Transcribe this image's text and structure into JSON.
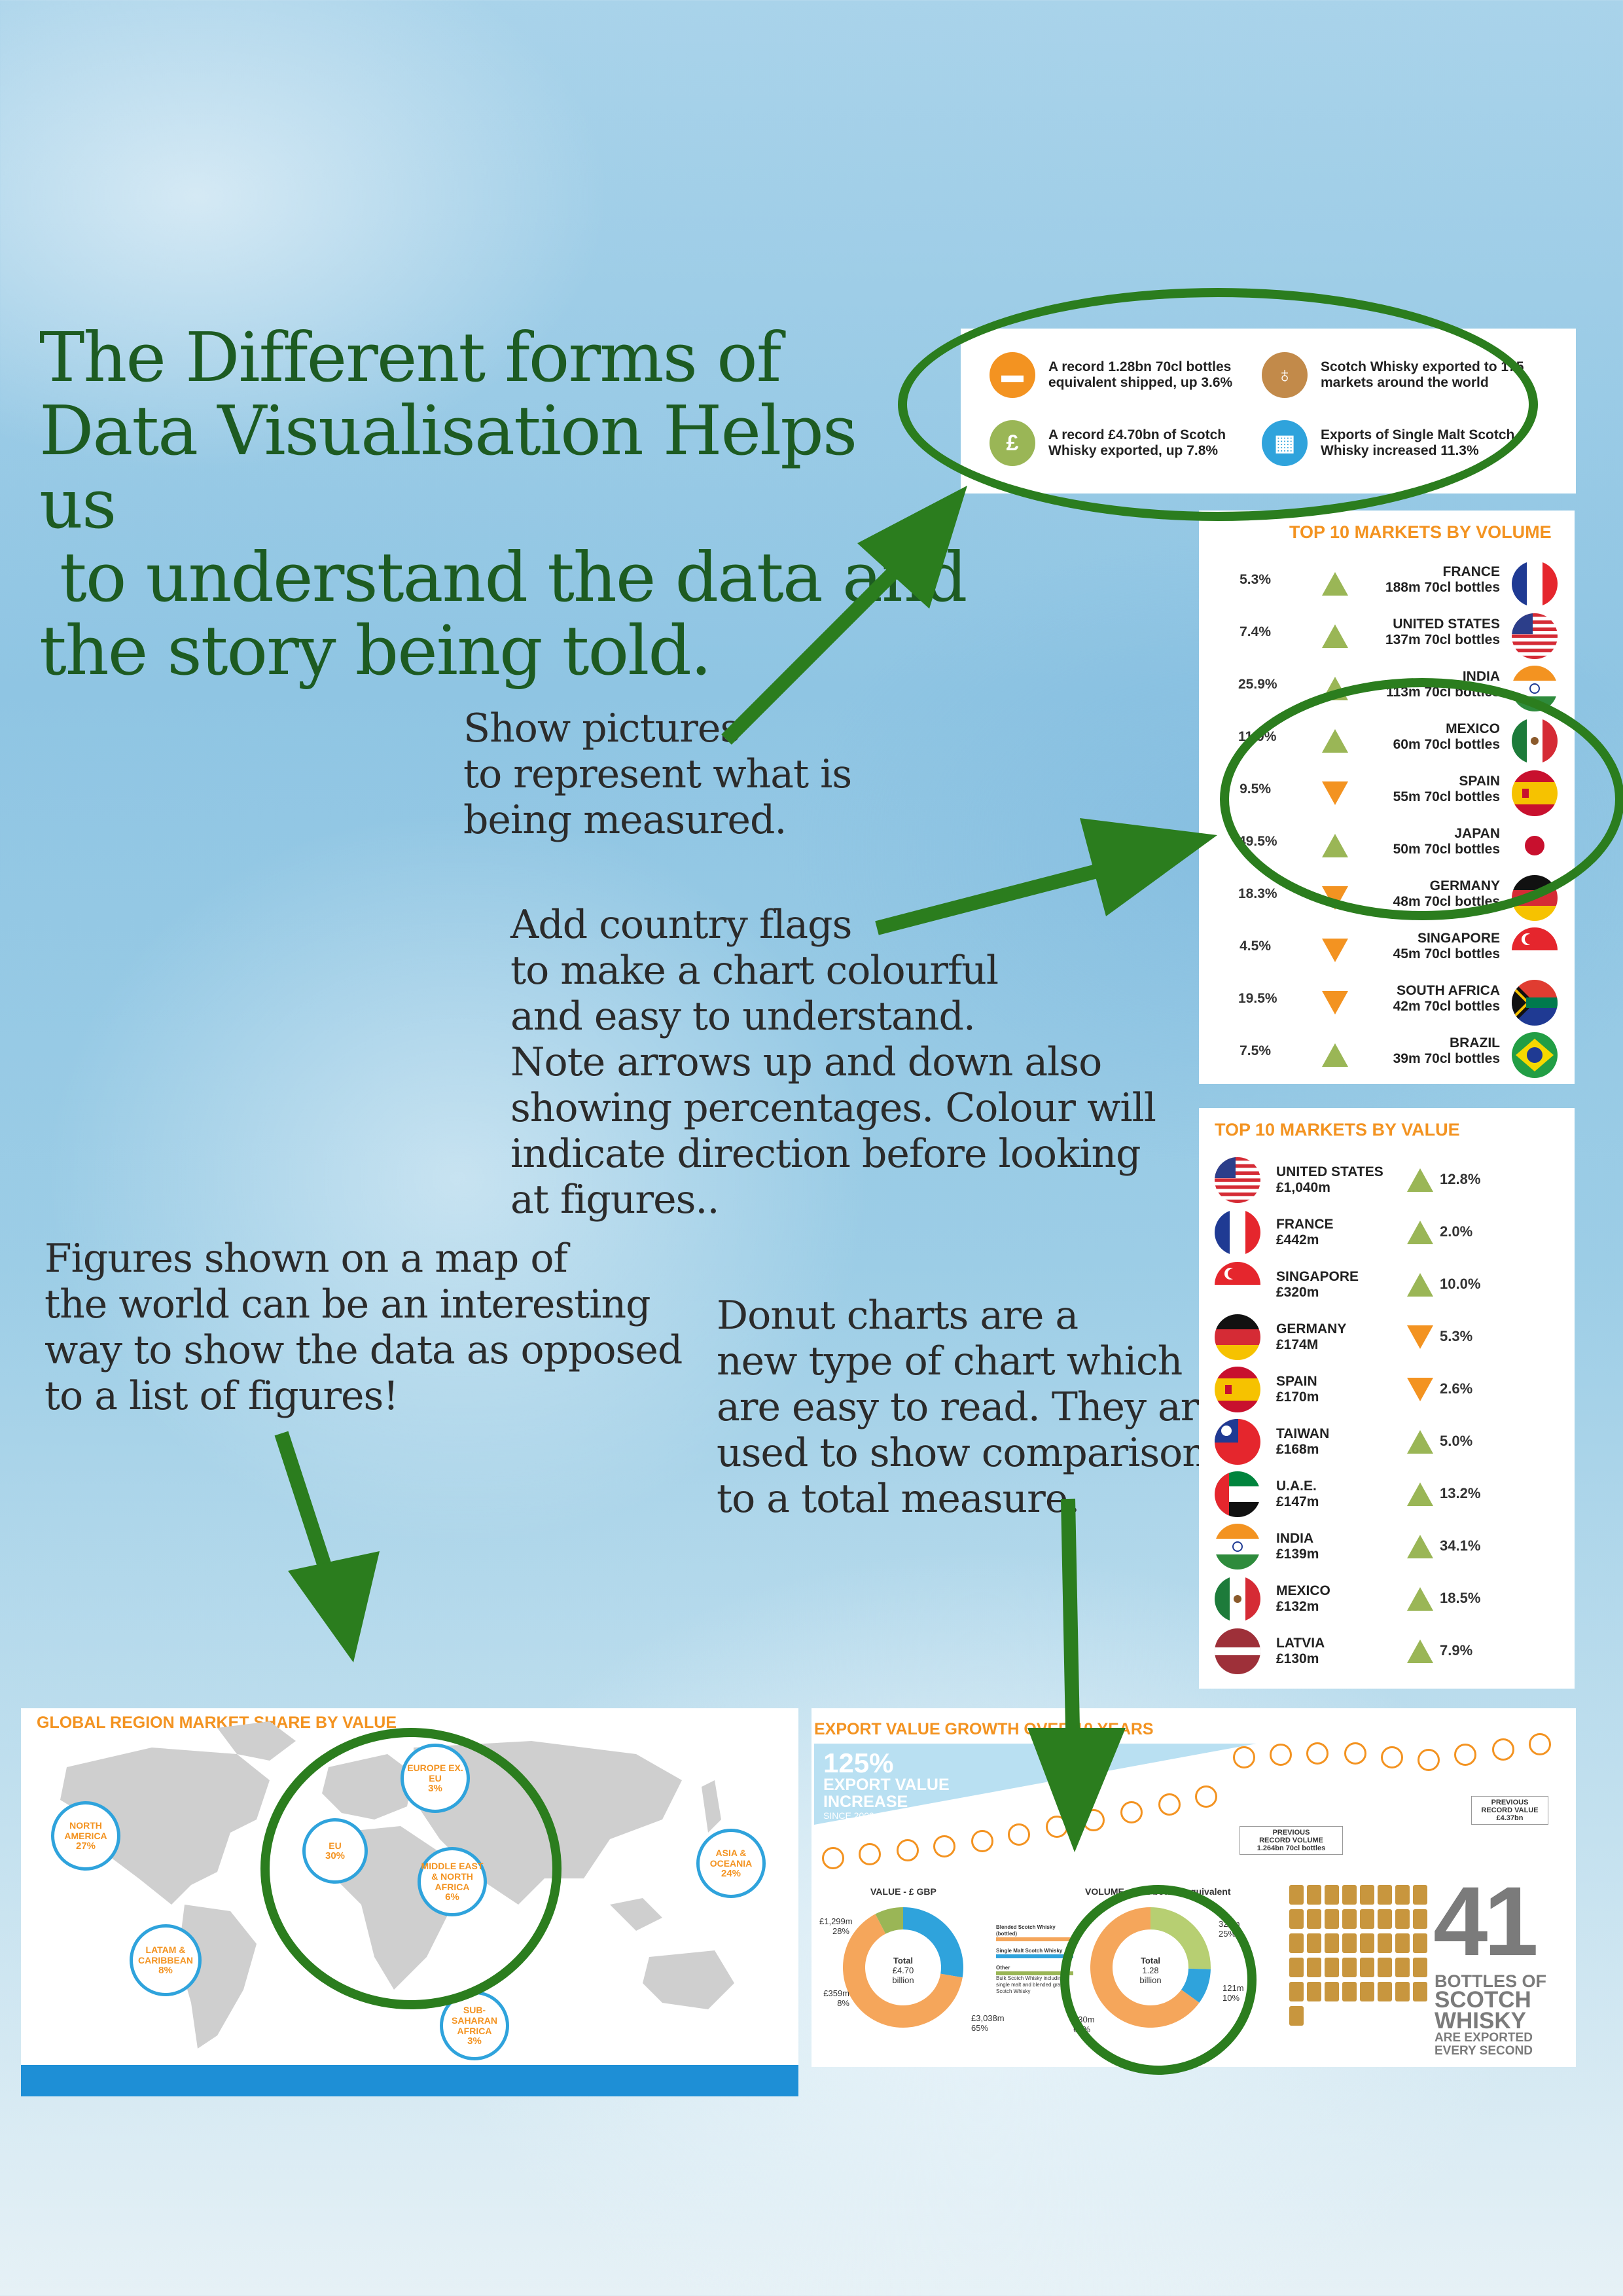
{
  "headline": [
    "The Different forms of",
    "Data Visualisation Helps us",
    " to understand the data and",
    "the story being told."
  ],
  "notes": {
    "pictures": [
      "Show pictures",
      "to represent what is",
      "being measured."
    ],
    "flags": [
      "Add country flags",
      "to make a chart colourful",
      "and easy to understand.",
      "Note arrows up and down also",
      "showing percentages. Colour will",
      "indicate direction before looking",
      "at figures.."
    ],
    "map": [
      "Figures shown on a map of",
      "the world can be an interesting",
      "way to show the data as opposed",
      "to a list of figures!"
    ],
    "donut": [
      "Donut charts are a",
      "new type of chart which",
      "are easy to read. They are",
      "used to show comparisons",
      "to a total measure."
    ]
  },
  "summary": {
    "items": [
      {
        "text": "A record 1.28bn 70cl bottles equivalent shipped, up 3.6%",
        "icon": "bottles-shipped-icon",
        "color": "#f39321",
        "glyph": "▬"
      },
      {
        "text": "Scotch Whisky exported to 175 markets around the world",
        "icon": "whisky-glass-icon",
        "color": "#c28a4a",
        "glyph": "♁"
      },
      {
        "text": "A record £4.70bn of Scotch Whisky exported, up 7.8%",
        "icon": "money-bag-icon",
        "color": "#9ab656",
        "glyph": "£"
      },
      {
        "text": "Exports of Single Malt Scotch Whisky increased 11.3%",
        "icon": "barrels-icon",
        "color": "#2fa3dc",
        "glyph": "▦"
      }
    ]
  },
  "volume": {
    "title": "TOP 10 MARKETS BY VOLUME",
    "rows": [
      {
        "pct": "5.3%",
        "dir": "up",
        "country": "FRANCE",
        "amount": "188m 70cl bottles",
        "flag": "france-flag-icon"
      },
      {
        "pct": "7.4%",
        "dir": "up",
        "country": "UNITED STATES",
        "amount": "137m 70cl bottles",
        "flag": "usa-flag-icon"
      },
      {
        "pct": "25.9%",
        "dir": "up",
        "country": "INDIA",
        "amount": "113m 70cl bottles",
        "flag": "india-flag-icon"
      },
      {
        "pct": "11.9%",
        "dir": "up",
        "country": "MEXICO",
        "amount": "60m 70cl bottles",
        "flag": "mexico-flag-icon"
      },
      {
        "pct": "9.5%",
        "dir": "down",
        "country": "SPAIN",
        "amount": "55m 70cl bottles",
        "flag": "spain-flag-icon"
      },
      {
        "pct": "49.5%",
        "dir": "up",
        "country": "JAPAN",
        "amount": "50m 70cl bottles",
        "flag": "japan-flag-icon"
      },
      {
        "pct": "18.3%",
        "dir": "down",
        "country": "GERMANY",
        "amount": "48m 70cl bottles",
        "flag": "germany-flag-icon"
      },
      {
        "pct": "4.5%",
        "dir": "down",
        "country": "SINGAPORE",
        "amount": "45m 70cl bottles",
        "flag": "singapore-flag-icon"
      },
      {
        "pct": "19.5%",
        "dir": "down",
        "country": "SOUTH AFRICA",
        "amount": "42m 70cl bottles",
        "flag": "south-africa-flag-icon"
      },
      {
        "pct": "7.5%",
        "dir": "up",
        "country": "BRAZIL",
        "amount": "39m 70cl bottles",
        "flag": "brazil-flag-icon"
      }
    ]
  },
  "value": {
    "title": "TOP 10 MARKETS BY VALUE",
    "rows": [
      {
        "country": "UNITED STATES",
        "amount": "£1,040m",
        "pct": "12.8%",
        "dir": "up",
        "flag": "usa-flag-icon"
      },
      {
        "country": "FRANCE",
        "amount": "£442m",
        "pct": "2.0%",
        "dir": "up",
        "flag": "france-flag-icon"
      },
      {
        "country": "SINGAPORE",
        "amount": "£320m",
        "pct": "10.0%",
        "dir": "up",
        "flag": "singapore-flag-icon"
      },
      {
        "country": "GERMANY",
        "amount": "£174M",
        "pct": "5.3%",
        "dir": "down",
        "flag": "germany-flag-icon"
      },
      {
        "country": "SPAIN",
        "amount": "£170m",
        "pct": "2.6%",
        "dir": "down",
        "flag": "spain-flag-icon"
      },
      {
        "country": "TAIWAN",
        "amount": "£168m",
        "pct": "5.0%",
        "dir": "up",
        "flag": "taiwan-flag-icon"
      },
      {
        "country": "U.A.E.",
        "amount": "£147m",
        "pct": "13.2%",
        "dir": "up",
        "flag": "uae-flag-icon"
      },
      {
        "country": "INDIA",
        "amount": "£139m",
        "pct": "34.1%",
        "dir": "up",
        "flag": "india-flag-icon"
      },
      {
        "country": "MEXICO",
        "amount": "£132m",
        "pct": "18.5%",
        "dir": "up",
        "flag": "mexico-flag-icon"
      },
      {
        "country": "LATVIA",
        "amount": "£130m",
        "pct": "7.9%",
        "dir": "up",
        "flag": "latvia-flag-icon"
      }
    ]
  },
  "map": {
    "title": "GLOBAL REGION MARKET SHARE BY VALUE",
    "regions": [
      {
        "name": "NORTH AMERICA",
        "pct": "27%"
      },
      {
        "name": "EU",
        "pct": "30%"
      },
      {
        "name": "EUROPE EX. EU",
        "pct": "3%"
      },
      {
        "name": "MIDDLE EAST & NORTH AFRICA",
        "pct": "6%"
      },
      {
        "name": "ASIA & OCEANIA",
        "pct": "24%"
      },
      {
        "name": "LATAM & CARIBBEAN",
        "pct": "8%"
      },
      {
        "name": "SUB-SAHARAN AFRICA",
        "pct": "3%"
      }
    ]
  },
  "growth": {
    "title": "EXPORT VALUE GROWTH OVER 10 YEARS",
    "big_pct": "125%",
    "big_label": [
      "EXPORT VALUE",
      "INCREASE"
    ],
    "since": "SINCE 2009",
    "record_volume": [
      "PREVIOUS",
      "RECORD VOLUME",
      "1.264bn 70cl bottles"
    ],
    "record_value": [
      "PREVIOUS",
      "RECORD VALUE",
      "£4.37bn"
    ]
  },
  "donut_value": {
    "title": "VALUE - £ GBP",
    "center": [
      "Total",
      "£4.70",
      "billion"
    ],
    "labels": [
      {
        "v": "£1,299m",
        "p": "28%"
      },
      {
        "v": "£359m",
        "p": "8%"
      },
      {
        "v": "£3,038m",
        "p": "65%"
      }
    ],
    "legend": [
      "Blended Scotch Whisky (bottled)",
      "Single Malt Scotch Whisky",
      "Other",
      "Bulk Scotch Whisky including single malt and blended grain Scotch Whisky"
    ]
  },
  "donut_volume": {
    "title": "VOLUME - 70cl bottles equivalent",
    "center": [
      "Total",
      "1.28",
      "billion"
    ],
    "labels": [
      {
        "v": "325m",
        "p": "25%"
      },
      {
        "v": "121m",
        "p": "10%"
      },
      {
        "v": "830m",
        "p": "65%"
      }
    ]
  },
  "bottles_stat": {
    "number": "41",
    "lines": [
      "BOTTLES OF",
      "SCOTCH",
      "WHISKY",
      "ARE EXPORTED",
      "EVERY SECOND"
    ]
  },
  "chart_data": [
    {
      "type": "pie",
      "title": "VALUE - £ GBP",
      "categories": [
        "Blended Scotch Whisky (bottled)",
        "Single Malt Scotch Whisky",
        "Other"
      ],
      "values": [
        3038,
        1299,
        359
      ],
      "unit": "£m"
    },
    {
      "type": "pie",
      "title": "VOLUME - 70cl bottles equivalent",
      "categories": [
        "Blended Scotch Whisky (bottled)",
        "Single Malt Scotch Whisky",
        "Other"
      ],
      "values": [
        830,
        325,
        121
      ],
      "unit": "m bottles"
    }
  ],
  "colors": {
    "accent": "#f39321",
    "up": "#9ab656",
    "down": "#f39321",
    "ring": "#2b7d1e",
    "blue": "#2fa3dc"
  }
}
